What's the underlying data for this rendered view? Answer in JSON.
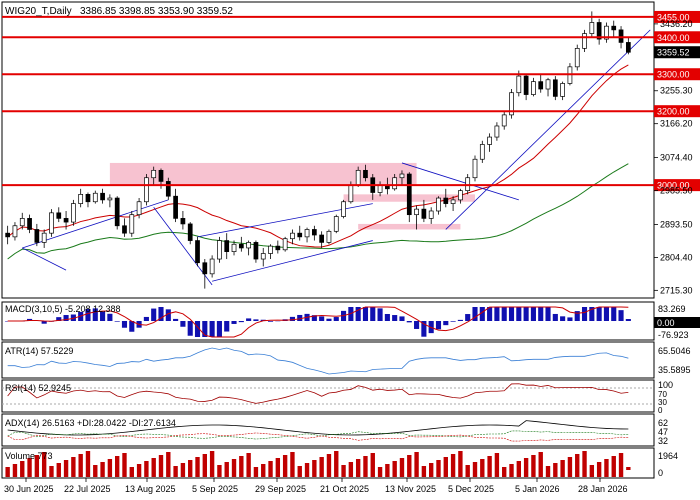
{
  "header": {
    "symbol": "WIG20_T,Daily",
    "ohlc": "3386.85 3398.85 3353.90 3359.52"
  },
  "chart_data": {
    "type": "candlestick",
    "ylim": [
      2700,
      3490
    ],
    "price_ticks": [
      "3436.20",
      "3255.30",
      "3166.20",
      "3074.40",
      "2985.50",
      "2893.50",
      "2804.40",
      "2715.30"
    ],
    "x_labels": [
      "30 Jun 2025",
      "22 Jul 2025",
      "13 Aug 2025",
      "5 Sep 2025",
      "29 Sep 2025",
      "21 Oct 2025",
      "13 Nov 2025",
      "5 Dec 2025",
      "5 Jan 2026",
      "28 Jan 2026"
    ],
    "horizontal_levels": [
      {
        "label": "3455.00",
        "value": 3455
      },
      {
        "label": "3400.00",
        "value": 3400
      },
      {
        "label": "3300.00",
        "value": 3300
      },
      {
        "label": "3200.00",
        "value": 3200
      },
      {
        "label": "3000.00",
        "value": 3000
      }
    ],
    "current_price": {
      "label": "3359.52",
      "value": 3359.52
    },
    "ohlc_points": [
      [
        2870,
        2890,
        2840,
        2860
      ],
      [
        2860,
        2900,
        2850,
        2890
      ],
      [
        2890,
        2925,
        2880,
        2910
      ],
      [
        2910,
        2920,
        2870,
        2880
      ],
      [
        2880,
        2895,
        2835,
        2845
      ],
      [
        2845,
        2880,
        2830,
        2870
      ],
      [
        2870,
        2935,
        2860,
        2925
      ],
      [
        2925,
        2940,
        2900,
        2910
      ],
      [
        2910,
        2930,
        2880,
        2900
      ],
      [
        2900,
        2960,
        2890,
        2950
      ],
      [
        2950,
        2990,
        2940,
        2975
      ],
      [
        2975,
        2980,
        2940,
        2955
      ],
      [
        2955,
        2985,
        2950,
        2978
      ],
      [
        2978,
        2990,
        2950,
        2960
      ],
      [
        2960,
        2975,
        2940,
        2965
      ],
      [
        2965,
        2970,
        2880,
        2890
      ],
      [
        2890,
        2910,
        2860,
        2870
      ],
      [
        2870,
        2930,
        2860,
        2920
      ],
      [
        2920,
        2965,
        2910,
        2955
      ],
      [
        2955,
        3030,
        2945,
        3020
      ],
      [
        3020,
        3050,
        3000,
        3040
      ],
      [
        3040,
        3045,
        2990,
        3010
      ],
      [
        3010,
        3020,
        2960,
        2970
      ],
      [
        2970,
        2990,
        2900,
        2910
      ],
      [
        2910,
        2930,
        2880,
        2895
      ],
      [
        2895,
        2900,
        2840,
        2850
      ],
      [
        2850,
        2860,
        2780,
        2790
      ],
      [
        2790,
        2800,
        2720,
        2760
      ],
      [
        2760,
        2810,
        2750,
        2800
      ],
      [
        2800,
        2860,
        2790,
        2850
      ],
      [
        2850,
        2870,
        2800,
        2820
      ],
      [
        2820,
        2850,
        2810,
        2840
      ],
      [
        2840,
        2860,
        2820,
        2830
      ],
      [
        2830,
        2850,
        2810,
        2845
      ],
      [
        2845,
        2850,
        2790,
        2800
      ],
      [
        2800,
        2830,
        2780,
        2815
      ],
      [
        2815,
        2840,
        2800,
        2835
      ],
      [
        2835,
        2850,
        2815,
        2825
      ],
      [
        2825,
        2860,
        2820,
        2855
      ],
      [
        2855,
        2880,
        2840,
        2870
      ],
      [
        2870,
        2890,
        2850,
        2860
      ],
      [
        2860,
        2885,
        2845,
        2880
      ],
      [
        2880,
        2890,
        2850,
        2865
      ],
      [
        2865,
        2875,
        2830,
        2845
      ],
      [
        2845,
        2880,
        2840,
        2875
      ],
      [
        2875,
        2920,
        2870,
        2915
      ],
      [
        2915,
        2960,
        2910,
        2955
      ],
      [
        2955,
        3010,
        2950,
        3000
      ],
      [
        3000,
        3050,
        2995,
        3040
      ],
      [
        3040,
        3055,
        3010,
        3020
      ],
      [
        3020,
        3030,
        2960,
        2980
      ],
      [
        2980,
        3010,
        2970,
        3000
      ],
      [
        3000,
        3020,
        2975,
        2990
      ],
      [
        2990,
        3030,
        2985,
        3020
      ],
      [
        3020,
        3040,
        3000,
        3030
      ],
      [
        3030,
        3035,
        2900,
        2920
      ],
      [
        2920,
        2945,
        2880,
        2935
      ],
      [
        2935,
        2960,
        2900,
        2910
      ],
      [
        2910,
        2940,
        2895,
        2930
      ],
      [
        2930,
        2970,
        2920,
        2965
      ],
      [
        2965,
        2990,
        2940,
        2950
      ],
      [
        2950,
        2970,
        2930,
        2960
      ],
      [
        2960,
        2990,
        2950,
        2985
      ],
      [
        2985,
        3030,
        2975,
        3020
      ],
      [
        3020,
        3080,
        3010,
        3070
      ],
      [
        3070,
        3120,
        3060,
        3110
      ],
      [
        3110,
        3140,
        3090,
        3130
      ],
      [
        3130,
        3170,
        3120,
        3160
      ],
      [
        3160,
        3200,
        3150,
        3190
      ],
      [
        3190,
        3260,
        3180,
        3250
      ],
      [
        3250,
        3310,
        3240,
        3295
      ],
      [
        3295,
        3300,
        3230,
        3245
      ],
      [
        3245,
        3290,
        3240,
        3280
      ],
      [
        3280,
        3300,
        3250,
        3260
      ],
      [
        3260,
        3290,
        3240,
        3285
      ],
      [
        3285,
        3295,
        3230,
        3240
      ],
      [
        3240,
        3280,
        3230,
        3275
      ],
      [
        3275,
        3330,
        3270,
        3320
      ],
      [
        3320,
        3380,
        3310,
        3370
      ],
      [
        3370,
        3420,
        3360,
        3410
      ],
      [
        3410,
        3470,
        3400,
        3440
      ],
      [
        3440,
        3450,
        3380,
        3395
      ],
      [
        3395,
        3440,
        3385,
        3430
      ],
      [
        3430,
        3445,
        3400,
        3420
      ],
      [
        3420,
        3430,
        3370,
        3386
      ],
      [
        3386,
        3398.85,
        3353.9,
        3359.52
      ]
    ],
    "indicators": {
      "macd": {
        "label": "MACD(3,10,5) -5.208 12.388",
        "scale": [
          "83.269",
          "0.00",
          "-76.923"
        ]
      },
      "atr": {
        "label": "ATR(14) 57.5229",
        "scale": [
          "65.5046",
          "35.5895"
        ]
      },
      "rsi": {
        "label": "RSI(14) 52.9245",
        "scale": [
          "100",
          "70",
          "30",
          "0"
        ]
      },
      "adx": {
        "label": "ADX(14) 26.5163 +DI:28.0422 -DI:27.6134",
        "scale": [
          "62",
          "47",
          "32"
        ]
      },
      "volume": {
        "label": "Volume 773",
        "scale": [
          "1964",
          "0"
        ]
      }
    }
  },
  "colors": {
    "bull": "#2a2a2a",
    "bear": "#000000",
    "level": "#e30000",
    "zone": "#f6b7c8",
    "ma_red": "#cc0000",
    "ma_green": "#1a7a1a",
    "trend_blue": "#1010c0",
    "macd_bar": "#1010b0",
    "atr_line": "#3a7fd5"
  }
}
